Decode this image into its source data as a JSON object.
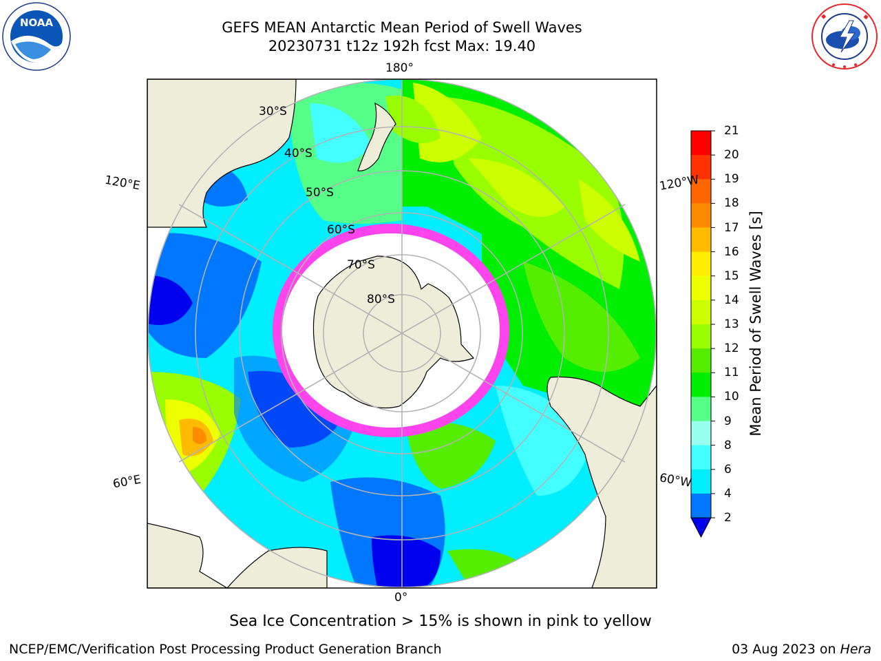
{
  "header": {
    "title_line1": "GEFS MEAN Antarctic Mean Period of Swell Waves",
    "title_line2": "20230731 t12z 192h fcst   Max: 19.40"
  },
  "logos": {
    "left": {
      "name": "noaa-logo",
      "text": "NOAA",
      "ring_text": "NATIONAL OCEANIC AND ATMOSPHERIC ADMINISTRATION · U.S. DEPARTMENT OF COMMERCE"
    },
    "right": {
      "name": "nws-logo",
      "ring_text": "NATIONAL WEATHER SERVICE"
    }
  },
  "map": {
    "projection": "south-polar-stereographic",
    "longitude_labels": {
      "top": "180°",
      "bottom": "0°",
      "upper_left": "120°E",
      "upper_right": "120°W",
      "lower_left": "60°E",
      "lower_right": "60°W"
    },
    "latitude_labels": [
      "30°S",
      "40°S",
      "50°S",
      "60°S",
      "70°S",
      "80°S"
    ],
    "colors": {
      "land": "#eeedda",
      "grid": "#b3b3b3",
      "ice_edge": "#ff44ee",
      "ice_inner": "#ffffff"
    }
  },
  "colorbar": {
    "label": "Mean Period of Swell Waves [s]",
    "ticks": [
      "21",
      "20",
      "19",
      "18",
      "17",
      "16",
      "15",
      "14",
      "13",
      "12",
      "11",
      "10",
      "9",
      "8",
      "6",
      "4",
      "2"
    ],
    "bands_top_to_bottom": [
      "#ff0000",
      "#ff3300",
      "#ff6600",
      "#ff8c00",
      "#ffbb00",
      "#ffee00",
      "#eeff00",
      "#ccff00",
      "#99ff00",
      "#55ee00",
      "#00ee00",
      "#55ff88",
      "#99ffee",
      "#44ffff",
      "#00eeff",
      "#0077ff"
    ],
    "under_color": "#0000ee"
  },
  "footer": {
    "note": "Sea Ice Concentration > 15% is shown in pink to yellow",
    "left": "NCEP/EMC/Verification Post Processing Product Generation Branch",
    "right_date": "03 Aug 2023 on",
    "right_host": "Hera"
  }
}
